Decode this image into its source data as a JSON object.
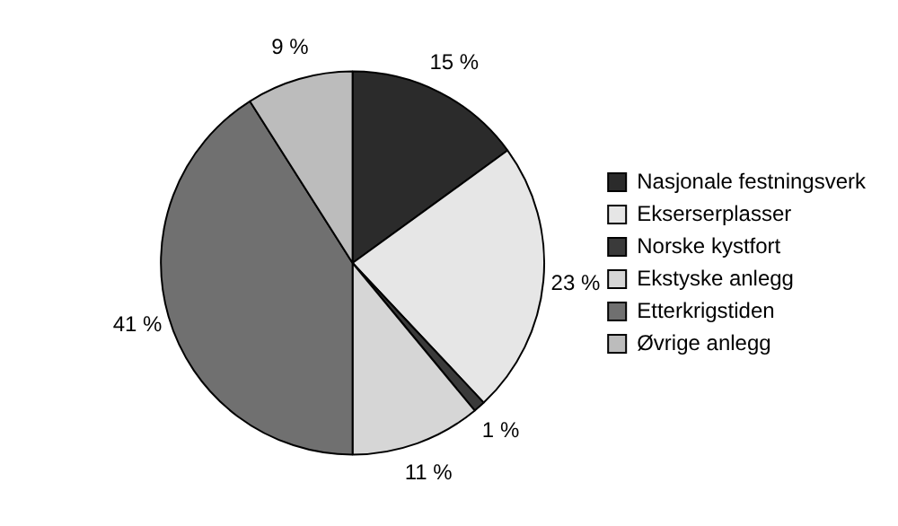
{
  "chart_data": {
    "type": "pie",
    "categories": [
      "Nasjonale festningsverk",
      "Ekserserplasser",
      "Norske kystfort",
      "Ekstyske anlegg",
      "Etterkrigstiden",
      "Øvrige anlegg"
    ],
    "values": [
      15,
      23,
      1,
      11,
      41,
      9
    ],
    "colors": [
      "#2b2b2b",
      "#e6e6e6",
      "#3a3a3a",
      "#d6d6d6",
      "#707070",
      "#bcbcbc"
    ],
    "value_labels": [
      "15 %",
      "23 %",
      "1 %",
      "11 %",
      "41 %",
      "9 %"
    ],
    "legend": "right"
  }
}
